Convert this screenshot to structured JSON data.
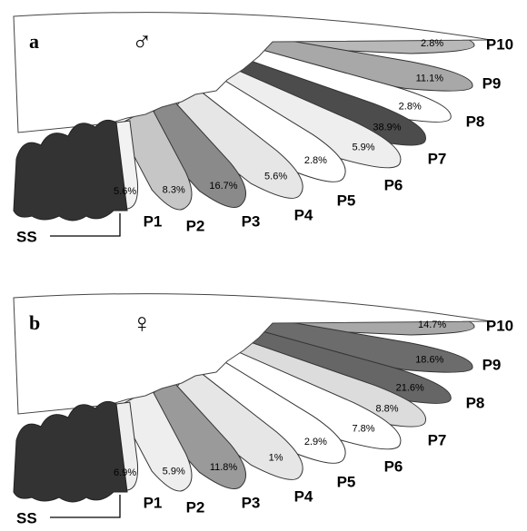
{
  "panels": [
    {
      "letter": "a",
      "symbol": "♂",
      "ss_label": "SS",
      "feathers": [
        {
          "label": "P1",
          "percent": "5.6%",
          "color": "#f2f2f2"
        },
        {
          "label": "P2",
          "percent": "8.3%",
          "color": "#c6c6c6"
        },
        {
          "label": "P3",
          "percent": "16.7%",
          "color": "#8a8a8a"
        },
        {
          "label": "P4",
          "percent": "5.6%",
          "color": "#e6e6e6"
        },
        {
          "label": "P5",
          "percent": "2.8%",
          "color": "#ffffff"
        },
        {
          "label": "P6",
          "percent": "5.9%",
          "color": "#eeeeee"
        },
        {
          "label": "P7",
          "percent": "38.9%",
          "color": "#4c4c4c"
        },
        {
          "label": "P8",
          "percent": "2.8%",
          "color": "#ffffff"
        },
        {
          "label": "P9",
          "percent": "11.1%",
          "color": "#a8a8a8"
        },
        {
          "label": "P10",
          "percent": "2.8%",
          "color": "#b8b8b8"
        }
      ]
    },
    {
      "letter": "b",
      "symbol": "♀",
      "ss_label": "SS",
      "feathers": [
        {
          "label": "P1",
          "percent": "6.9%",
          "color": "#eeeeee"
        },
        {
          "label": "P2",
          "percent": "5.9%",
          "color": "#eeeeee"
        },
        {
          "label": "P3",
          "percent": "11.8%",
          "color": "#9a9a9a"
        },
        {
          "label": "P4",
          "percent": "1%",
          "color": "#e6e6e6"
        },
        {
          "label": "P5",
          "percent": "2.9%",
          "color": "#ffffff"
        },
        {
          "label": "P6",
          "percent": "7.8%",
          "color": "#ffffff"
        },
        {
          "label": "P7",
          "percent": "8.8%",
          "color": "#dcdcdc"
        },
        {
          "label": "P8",
          "percent": "21.6%",
          "color": "#666666"
        },
        {
          "label": "P9",
          "percent": "18.6%",
          "color": "#6c6c6c"
        },
        {
          "label": "P10",
          "percent": "14.7%",
          "color": "#a8a8a8"
        }
      ]
    }
  ]
}
